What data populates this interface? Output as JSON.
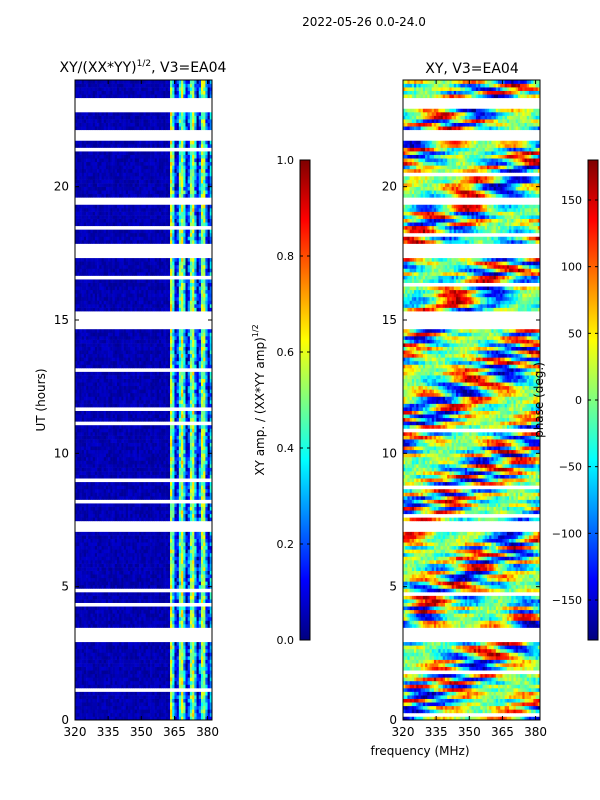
{
  "suptitle": "2022-05-26 0.0-24.0",
  "shared_xlabel": "frequency (MHz)",
  "colors": {
    "axis": "#000000",
    "nodata": "#ffffff",
    "low": "#00008f"
  },
  "colormap_stops": [
    "#00007f",
    "#0000ff",
    "#007fff",
    "#00ffff",
    "#7fff7f",
    "#ffff00",
    "#ff7f00",
    "#ff0000",
    "#7f0000"
  ],
  "chart_data": [
    {
      "type": "heatmap",
      "panel": "left",
      "title_main": "XY/(XX*YY)",
      "title_sup": "1/2",
      "title_suffix": ", V3=EA04",
      "xlabel": "",
      "ylabel": "UT (hours)",
      "xlim": [
        320,
        382
      ],
      "ylim": [
        0,
        24
      ],
      "xticks": [
        320,
        335,
        350,
        365,
        380
      ],
      "xtick_labels": [
        "320",
        "335",
        "350",
        "365",
        "380"
      ],
      "yticks": [
        0,
        5,
        10,
        15,
        20
      ],
      "ytick_labels": [
        "0",
        "5",
        "10",
        "15",
        "20"
      ],
      "colorbar": {
        "label": "XY amp. / (XX*YY amp)",
        "label_sup": "1/2",
        "range": [
          0.0,
          1.0
        ],
        "ticks": [
          0.0,
          0.2,
          0.4,
          0.6,
          0.8,
          1.0
        ],
        "tick_labels": [
          "0.0",
          "0.2",
          "0.4",
          "0.6",
          "0.8",
          "1.0"
        ]
      },
      "blank_hour_bands": [
        [
          2.9,
          3.5
        ],
        [
          7.1,
          7.4
        ],
        [
          14.7,
          15.3
        ],
        [
          17.4,
          17.9
        ],
        [
          19.3,
          19.6
        ],
        [
          21.8,
          22.2
        ],
        [
          23.0,
          23.3
        ]
      ],
      "bright_freq_band_mhz": [
        363,
        382
      ]
    },
    {
      "type": "heatmap",
      "panel": "right",
      "title_main": "XY, V3=EA04",
      "xlabel": "",
      "ylabel": "",
      "xlim": [
        320,
        382
      ],
      "ylim": [
        0,
        24
      ],
      "xticks": [
        320,
        335,
        350,
        365,
        380
      ],
      "xtick_labels": [
        "320",
        "335",
        "350",
        "365",
        "380"
      ],
      "yticks": [
        0,
        5,
        10,
        15,
        20
      ],
      "ytick_labels": [
        "0",
        "5",
        "10",
        "15",
        "20"
      ],
      "colorbar": {
        "label": "phase (deg.)",
        "range": [
          -180,
          180
        ],
        "ticks": [
          -150,
          -100,
          -50,
          0,
          50,
          100,
          150
        ],
        "tick_labels": [
          "−150",
          "−100",
          "−50",
          "0",
          "50",
          "100",
          "150"
        ]
      },
      "blank_hour_bands": [
        [
          2.9,
          3.5
        ],
        [
          7.1,
          7.4
        ],
        [
          14.7,
          15.3
        ],
        [
          17.4,
          17.9
        ],
        [
          19.3,
          19.6
        ],
        [
          21.8,
          22.2
        ],
        [
          23.0,
          23.3
        ]
      ]
    }
  ]
}
